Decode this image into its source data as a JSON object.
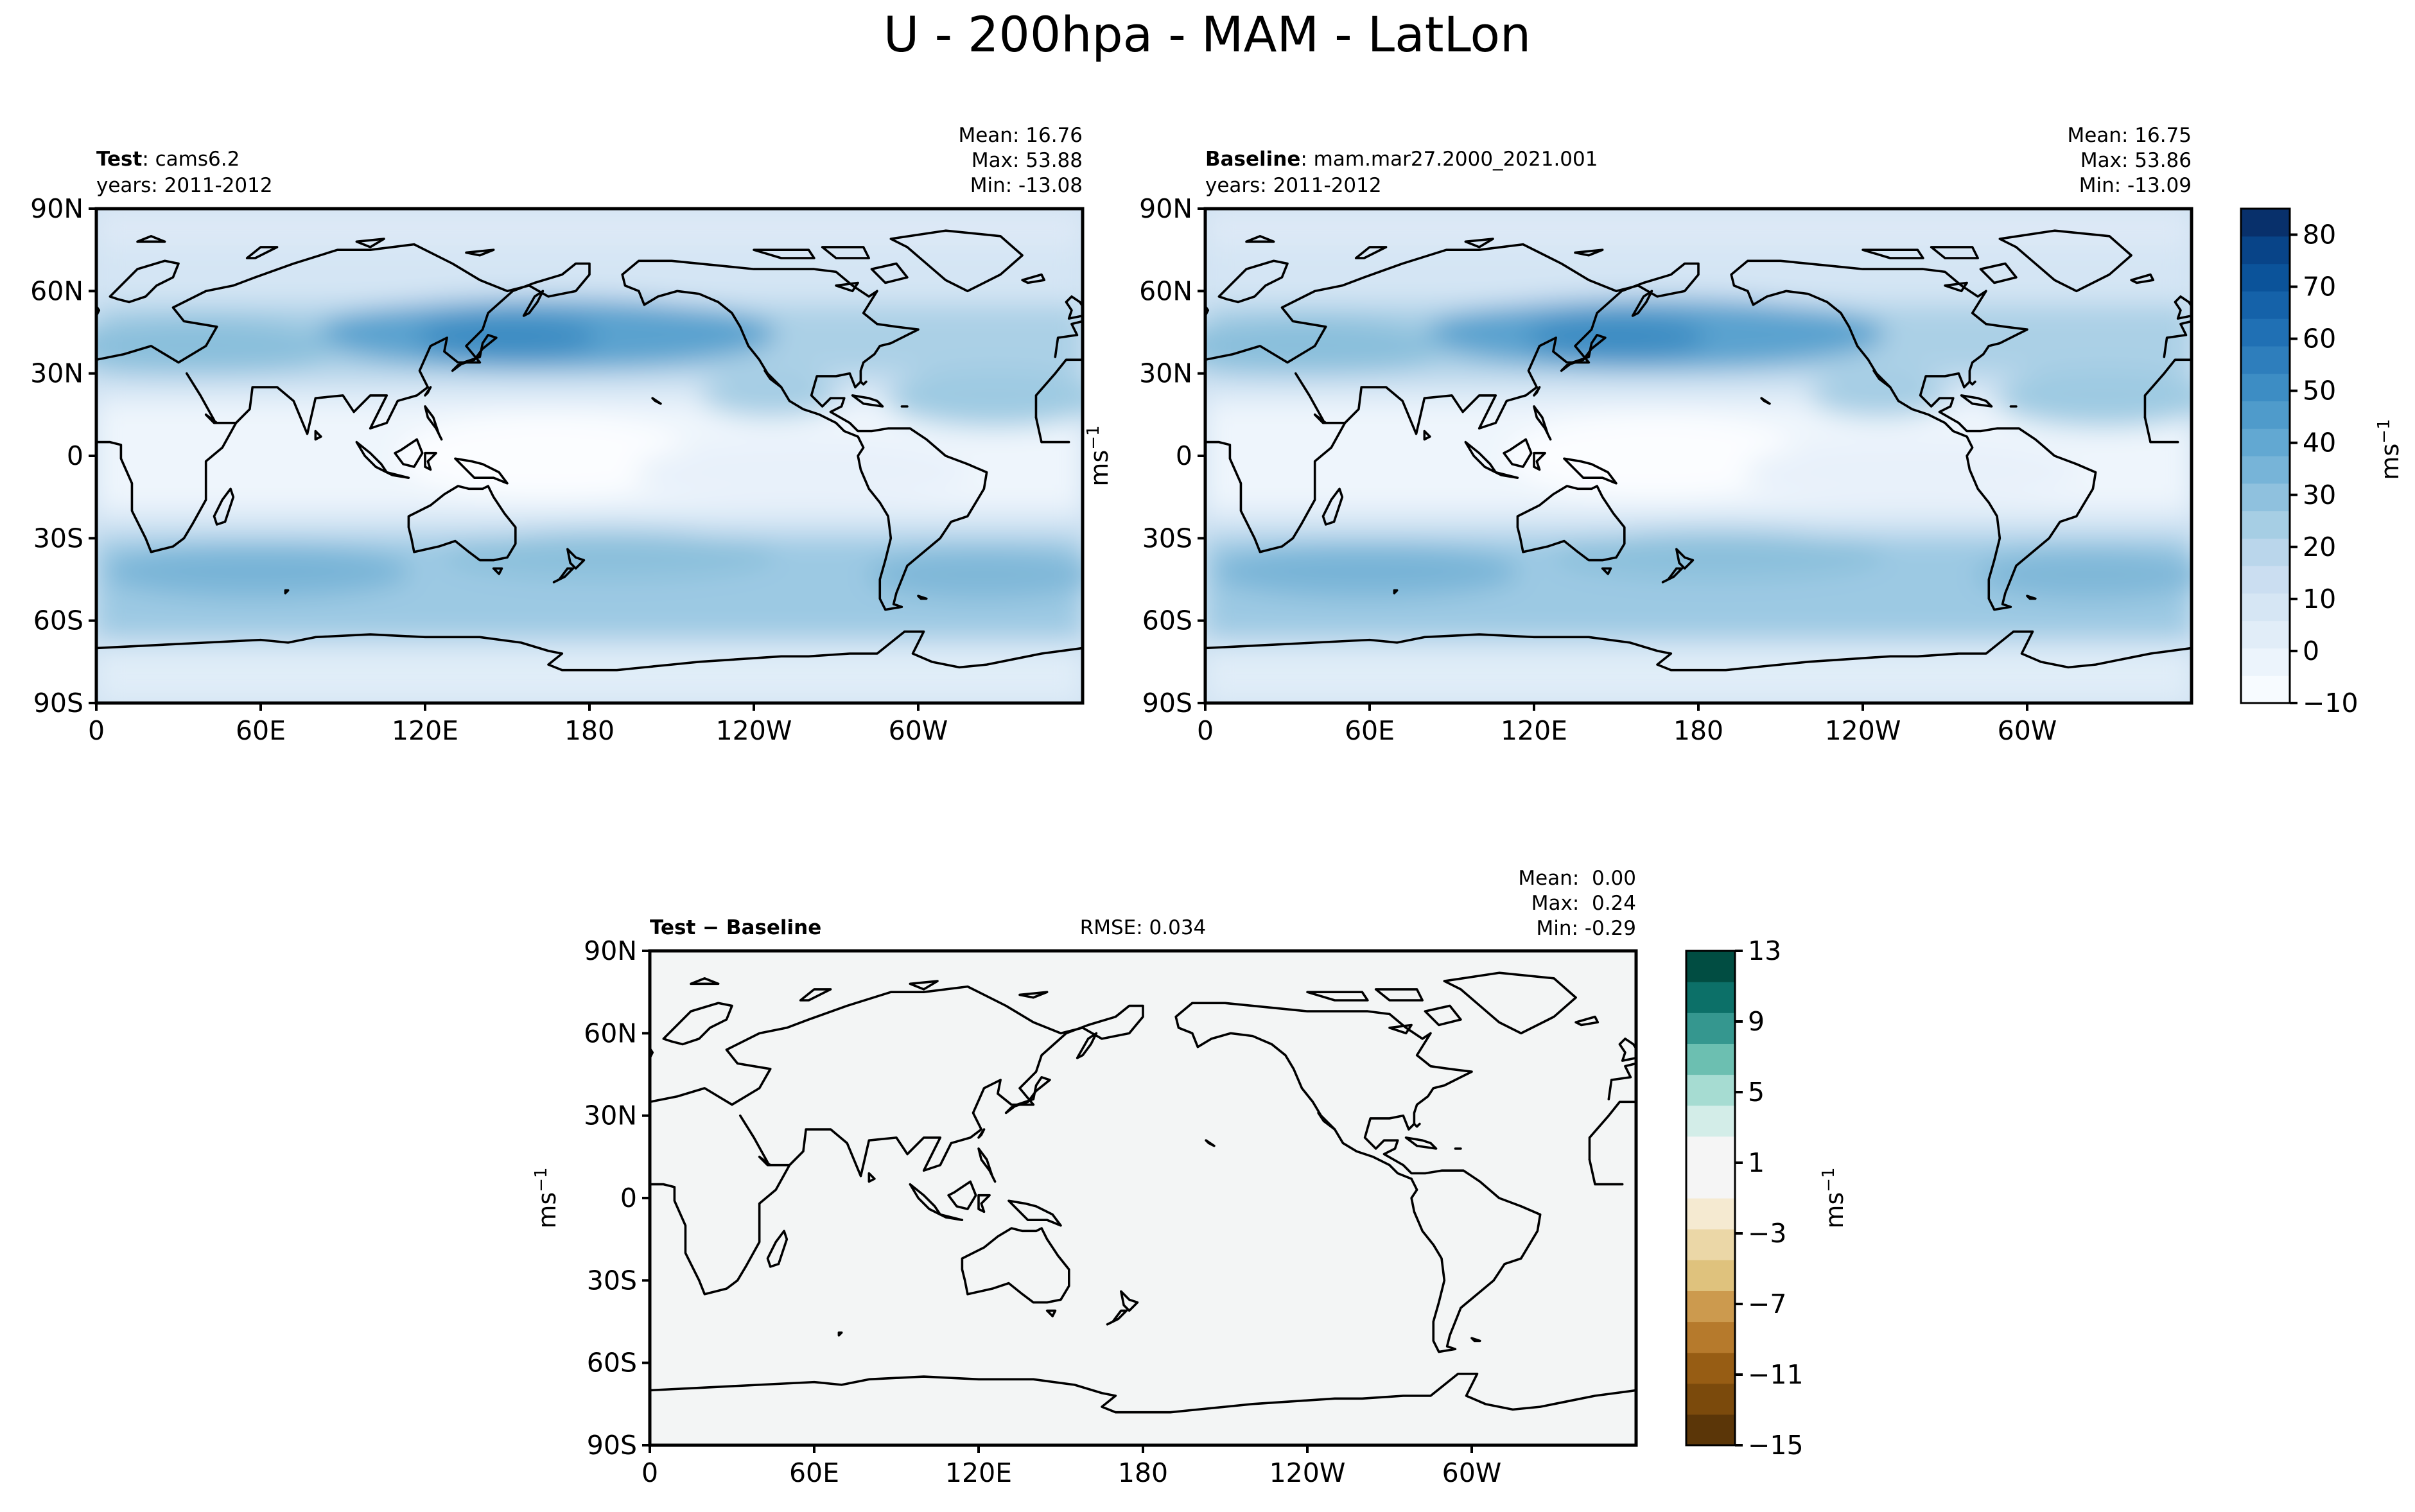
{
  "suptitle": "U - 200hpa - MAM - LatLon",
  "chart_data": [
    {
      "type": "heatmap",
      "name": "test",
      "title_bold": "Test",
      "title_rest": ": cams6.2",
      "subtitle": "years: 2011-2012",
      "stats": [
        "Mean: 16.76",
        "Max: 53.88",
        "Min: -13.08"
      ],
      "ylabel": "ms",
      "ylabel_sup": "−1",
      "yticks": [
        "90N",
        "60N",
        "30N",
        "0",
        "30S",
        "60S",
        "90S"
      ],
      "xticks": [
        "0",
        "60E",
        "120E",
        "180",
        "120W",
        "60W"
      ],
      "xlim": [
        0,
        360
      ],
      "ylim": [
        -90,
        90
      ]
    },
    {
      "type": "heatmap",
      "name": "baseline",
      "title_bold": "Baseline",
      "title_rest": ": mam.mar27.2000_2021.001",
      "subtitle": "years: 2011-2012",
      "stats": [
        "Mean: 16.75",
        "Max: 53.86",
        "Min: -13.09"
      ],
      "yticks": [
        "90N",
        "60N",
        "30N",
        "0",
        "30S",
        "60S",
        "90S"
      ],
      "xticks": [
        "0",
        "60E",
        "120E",
        "180",
        "120W",
        "60W"
      ],
      "xlim": [
        0,
        360
      ],
      "ylim": [
        -90,
        90
      ]
    },
    {
      "type": "heatmap",
      "name": "difference",
      "title_bold": "Test − Baseline",
      "rmse": "RMSE: 0.034",
      "stats": [
        "Mean:  0.00",
        "Max:  0.24",
        "Min: -0.29"
      ],
      "ylabel": "ms",
      "ylabel_sup": "−1",
      "yticks": [
        "90N",
        "60N",
        "30N",
        "0",
        "30S",
        "60S",
        "90S"
      ],
      "xticks": [
        "0",
        "60E",
        "120E",
        "180",
        "120W",
        "60W"
      ],
      "xlim": [
        0,
        360
      ],
      "ylim": [
        -90,
        90
      ]
    }
  ],
  "colorbar_main": {
    "min": -10,
    "max": 85,
    "ticks": [
      -10,
      0,
      10,
      20,
      30,
      40,
      50,
      60,
      70,
      80
    ],
    "tick_labels": [
      "−10",
      "0",
      "10",
      "20",
      "30",
      "40",
      "50",
      "60",
      "70",
      "80"
    ],
    "label": "ms",
    "label_sup": "−1",
    "colors": [
      "#f7fbff",
      "#ecf4fc",
      "#e1edf8",
      "#d6e6f4",
      "#cbdef1",
      "#bad6eb",
      "#a6cee4",
      "#8fc1de",
      "#77b4d8",
      "#62a8d2",
      "#4f9bcb",
      "#3d8dc4",
      "#2e7ebc",
      "#2070b4",
      "#1562a9",
      "#0b539a",
      "#084488",
      "#08306b"
    ]
  },
  "colorbar_diff": {
    "min": -15,
    "max": 13,
    "ticks": [
      -15,
      -11,
      -7,
      -3,
      1,
      5,
      9,
      13
    ],
    "tick_labels": [
      "−15",
      "−11",
      "−7",
      "−3",
      "1",
      "5",
      "9",
      "13"
    ],
    "label": "ms",
    "label_sup": "−1",
    "colors": [
      "#5b3608",
      "#7b4a0c",
      "#975d14",
      "#b67a2c",
      "#cc9a4e",
      "#dfc27d",
      "#ebd7a7",
      "#f5ead1",
      "#f5f5f5",
      "#f5f5f5",
      "#d3ede8",
      "#a6dcd2",
      "#6cbfb1",
      "#35978f",
      "#0c7068",
      "#014d42"
    ]
  },
  "colors": {
    "diff_fill": "#f3f5f5",
    "ocean_low": "#f7fbff"
  }
}
